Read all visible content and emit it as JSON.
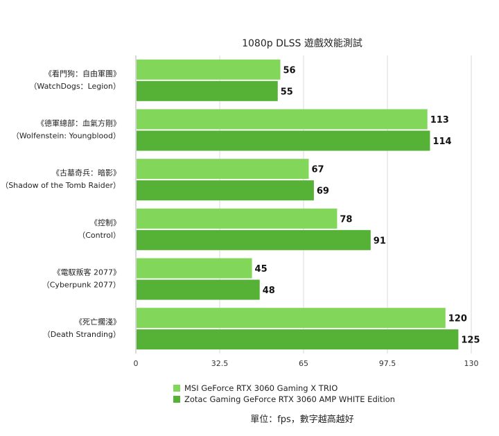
{
  "colors": {
    "series1": "#82d65a",
    "series2": "#55b236",
    "grid": "#d9d9d9",
    "axis": "#b3b3b3"
  },
  "chart_data": {
    "type": "bar",
    "orientation": "horizontal",
    "title": "1080p DLSS 遊戲效能測試",
    "categories": [
      [
        "《看門狗：自由軍團》",
        "（WatchDogs：Legion）"
      ],
      [
        "《德軍總部：血氣方剛》",
        "（Wolfenstein: Youngblood）"
      ],
      [
        "《古墓奇兵：暗影》",
        "（Shadow of the Tomb Raider）"
      ],
      [
        "《控制》",
        "（Control）"
      ],
      [
        "《電馭叛客 2077》",
        "（Cyberpunk 2077）"
      ],
      [
        "《死亡擱淺》",
        "（Death Stranding）"
      ]
    ],
    "series": [
      {
        "name": "MSI GeForce RTX 3060 Gaming X TRIO",
        "values": [
          56,
          113,
          67,
          78,
          45,
          120
        ]
      },
      {
        "name": "Zotac Gaming GeForce RTX 3060 AMP WHITE Edition",
        "values": [
          55,
          114,
          69,
          91,
          48,
          125
        ]
      }
    ],
    "xlim": [
      0,
      130
    ],
    "xticks": [
      0,
      32.5,
      65,
      97.5,
      130
    ],
    "xtick_labels": [
      "0",
      "32.5",
      "65",
      "97.5",
      "130"
    ],
    "grid": true,
    "legend": "bottom"
  },
  "footnote": "單位：fps，數字越高越好"
}
